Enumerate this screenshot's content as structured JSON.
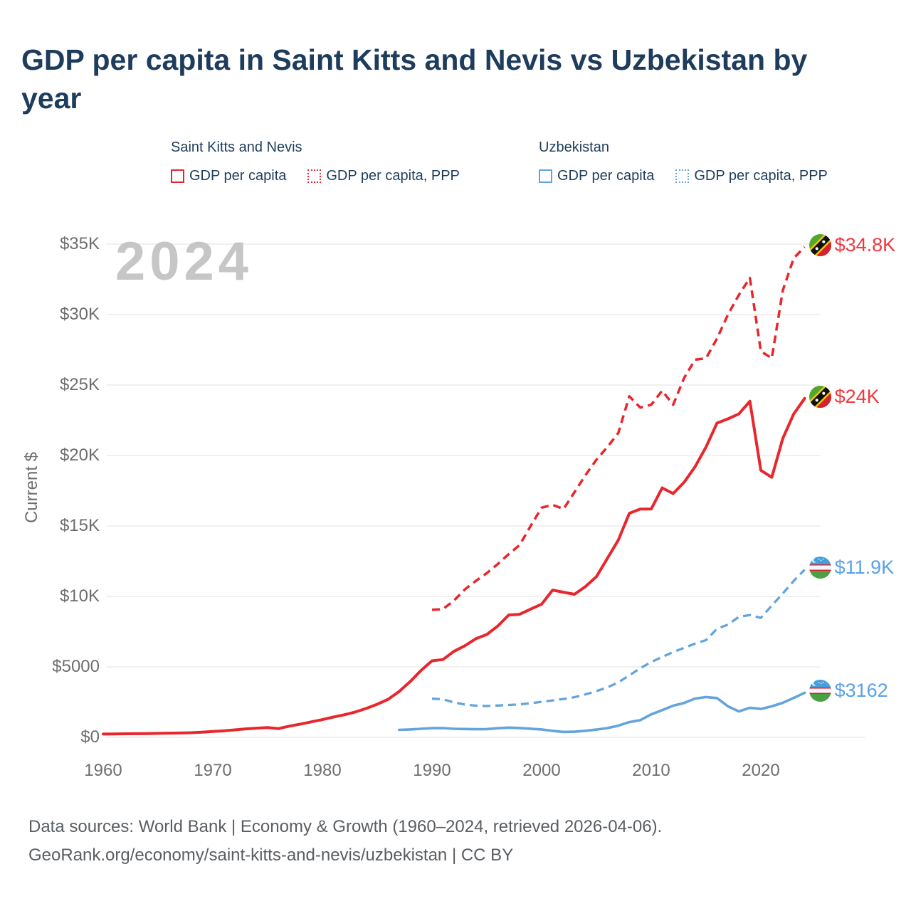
{
  "title": "GDP per capita in Saint Kitts and Nevis vs Uzbekistan by year",
  "watermark": "2024",
  "ylabel": "Current $",
  "legend": {
    "groups": [
      {
        "name": "Saint Kitts and Nevis",
        "color": "#e8262c",
        "items": [
          {
            "label": "GDP per capita",
            "style": "solid"
          },
          {
            "label": "GDP per capita, PPP",
            "style": "dashed"
          }
        ]
      },
      {
        "name": "Uzbekistan",
        "color": "#63a4dd",
        "items": [
          {
            "label": "GDP per capita",
            "style": "solid"
          },
          {
            "label": "GDP per capita, PPP",
            "style": "dashed"
          }
        ]
      }
    ]
  },
  "footer": {
    "line1": "Data sources: World Bank | Economy & Growth (1960–2024, retrieved 2026-04-06).",
    "line2": "GeoRank.org/economy/saint-kitts-and-nevis/uzbekistan | CC BY"
  },
  "chart_data": {
    "type": "line",
    "title": "GDP per capita in Saint Kitts and Nevis vs Uzbekistan by year",
    "xlabel": "",
    "ylabel": "Current $",
    "xlim": [
      1960,
      2024
    ],
    "ylim": [
      0,
      35000
    ],
    "grid": true,
    "grid_color": "#ececec",
    "legend_position": "top",
    "x_ticks": [
      1960,
      1970,
      1980,
      1990,
      2000,
      2010,
      2020
    ],
    "y_ticks": [
      {
        "value": 0,
        "label": "$0"
      },
      {
        "value": 5000,
        "label": "$5000"
      },
      {
        "value": 10000,
        "label": "$10K"
      },
      {
        "value": 15000,
        "label": "$15K"
      },
      {
        "value": 20000,
        "label": "$20K"
      },
      {
        "value": 25000,
        "label": "$25K"
      },
      {
        "value": 30000,
        "label": "$30K"
      },
      {
        "value": 35000,
        "label": "$35K"
      }
    ],
    "series": [
      {
        "id": "uzb-gdp-ppp",
        "country": "Uzbekistan",
        "name": "GDP per capita, PPP",
        "color": "#63a4dd",
        "label_color": "#58a1e8",
        "dash": "dashed",
        "width": 3.3,
        "flag": "uz",
        "start_year": 1990,
        "end_label": "$11.9K",
        "values": [
          2740,
          2700,
          2480,
          2330,
          2250,
          2220,
          2260,
          2300,
          2340,
          2420,
          2520,
          2620,
          2720,
          2850,
          3050,
          3280,
          3550,
          3900,
          4400,
          4900,
          5350,
          5700,
          6050,
          6350,
          6650,
          6900,
          7700,
          8000,
          8550,
          8680,
          8480,
          9350,
          10200,
          11100,
          11900
        ]
      },
      {
        "id": "uzb-gdp",
        "country": "Uzbekistan",
        "name": "GDP per capita",
        "color": "#63a4dd",
        "label_color": "#58a1e8",
        "dash": "solid",
        "width": 3.6,
        "flag": "uz",
        "start_year": 1987,
        "end_label": "$3162",
        "values": [
          530,
          560,
          605,
          650,
          655,
          605,
          590,
          575,
          585,
          645,
          690,
          660,
          610,
          560,
          460,
          385,
          400,
          465,
          550,
          655,
          830,
          1080,
          1215,
          1630,
          1930,
          2250,
          2440,
          2750,
          2860,
          2790,
          2200,
          1840,
          2100,
          2015,
          2200,
          2450,
          2800,
          3162
        ]
      },
      {
        "id": "skn-gdp-ppp",
        "country": "Saint Kitts and Nevis",
        "name": "GDP per capita, PPP",
        "color": "#e8262c",
        "label_color": "#f0393f",
        "dash": "dashed",
        "width": 3.5,
        "flag": "kn",
        "start_year": 1990,
        "end_label": "$34.8K",
        "values": [
          9050,
          9100,
          9700,
          10500,
          11100,
          11650,
          12300,
          13000,
          13650,
          15000,
          16300,
          16500,
          16200,
          17400,
          18600,
          19700,
          20600,
          21600,
          24200,
          23400,
          23600,
          24600,
          23600,
          25500,
          26800,
          26900,
          28300,
          30000,
          31400,
          32600,
          27400,
          26900,
          31700,
          34000,
          34800
        ]
      },
      {
        "id": "skn-gdp",
        "country": "Saint Kitts and Nevis",
        "name": "GDP per capita",
        "color": "#e8262c",
        "label_color": "#f0393f",
        "dash": "solid",
        "width": 4,
        "flag": "kn",
        "start_year": 1960,
        "end_label": "$24K",
        "values": [
          230,
          240,
          250,
          260,
          270,
          285,
          300,
          310,
          330,
          370,
          420,
          460,
          530,
          600,
          650,
          690,
          620,
          800,
          940,
          1100,
          1260,
          1440,
          1600,
          1800,
          2050,
          2350,
          2700,
          3250,
          3950,
          4750,
          5430,
          5520,
          6100,
          6500,
          7000,
          7300,
          7900,
          8680,
          8730,
          9100,
          9450,
          10450,
          10300,
          10150,
          10700,
          11400,
          12700,
          14000,
          15900,
          16200,
          16200,
          17700,
          17300,
          18100,
          19200,
          20600,
          22300,
          22600,
          22950,
          23850,
          18950,
          18450,
          21200,
          22950,
          24050
        ]
      }
    ]
  }
}
